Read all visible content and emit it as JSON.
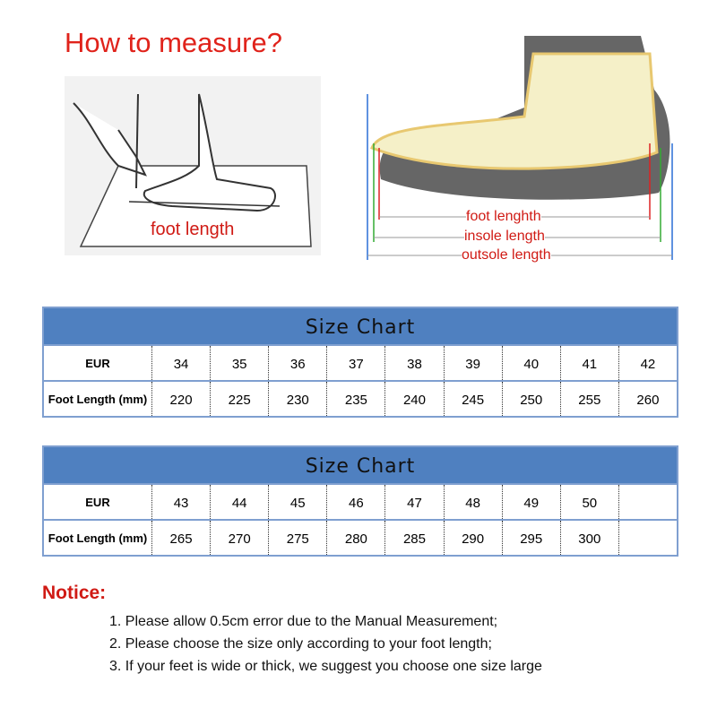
{
  "header": {
    "title": "How to measure?"
  },
  "left_illustration": {
    "label": "foot length"
  },
  "right_illustration": {
    "labels": [
      "foot lenghth",
      "insole length",
      "outsole length"
    ]
  },
  "charts": [
    {
      "title": "Size Chart",
      "row_labels": [
        "EUR",
        "Foot Length (mm)"
      ],
      "eur": [
        "34",
        "35",
        "36",
        "37",
        "38",
        "39",
        "40",
        "41",
        "42"
      ],
      "mm": [
        "220",
        "225",
        "230",
        "235",
        "240",
        "245",
        "250",
        "255",
        "260"
      ]
    },
    {
      "title": "Size Chart",
      "row_labels": [
        "EUR",
        "Foot Length (mm)"
      ],
      "eur": [
        "43",
        "44",
        "45",
        "46",
        "47",
        "48",
        "49",
        "50",
        ""
      ],
      "mm": [
        "265",
        "270",
        "275",
        "280",
        "285",
        "290",
        "295",
        "300",
        ""
      ]
    }
  ],
  "notice": {
    "title": "Notice:",
    "items": [
      "1. Please allow 0.5cm error due to the Manual Measurement;",
      "2. Please choose the size only according to your foot length;",
      "3. If your feet is wide or thick, we suggest you choose one size large"
    ]
  },
  "colors": {
    "accent_red": "#e0231b",
    "header_blue": "#4f80c0"
  }
}
